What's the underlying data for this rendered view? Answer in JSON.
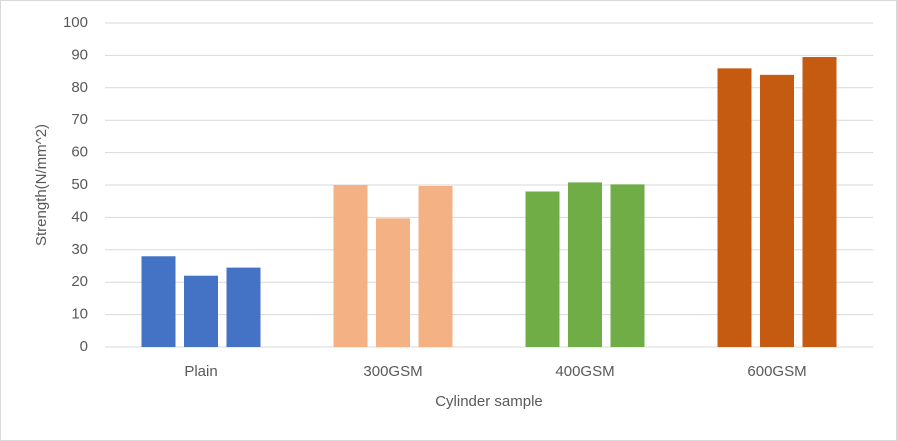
{
  "chart_data": {
    "type": "bar",
    "x_label": "Cylinder sample",
    "y_label": "Strength(N/mm^2)",
    "categories": [
      "Plain",
      "300GSM",
      "400GSM",
      "600GSM"
    ],
    "groups": [
      {
        "color": "#4472c4",
        "values": [
          28,
          22,
          24.5
        ]
      },
      {
        "color": "#f4b183",
        "values": [
          50,
          39.7,
          49.7
        ]
      },
      {
        "color": "#70ad47",
        "values": [
          48,
          50.8,
          50.2
        ]
      },
      {
        "color": "#c55a11",
        "values": [
          86,
          84,
          89.5
        ]
      }
    ],
    "ylim": [
      0,
      100
    ],
    "yticks": [
      0,
      10,
      20,
      30,
      40,
      50,
      60,
      70,
      80,
      90,
      100
    ],
    "grid": true
  }
}
